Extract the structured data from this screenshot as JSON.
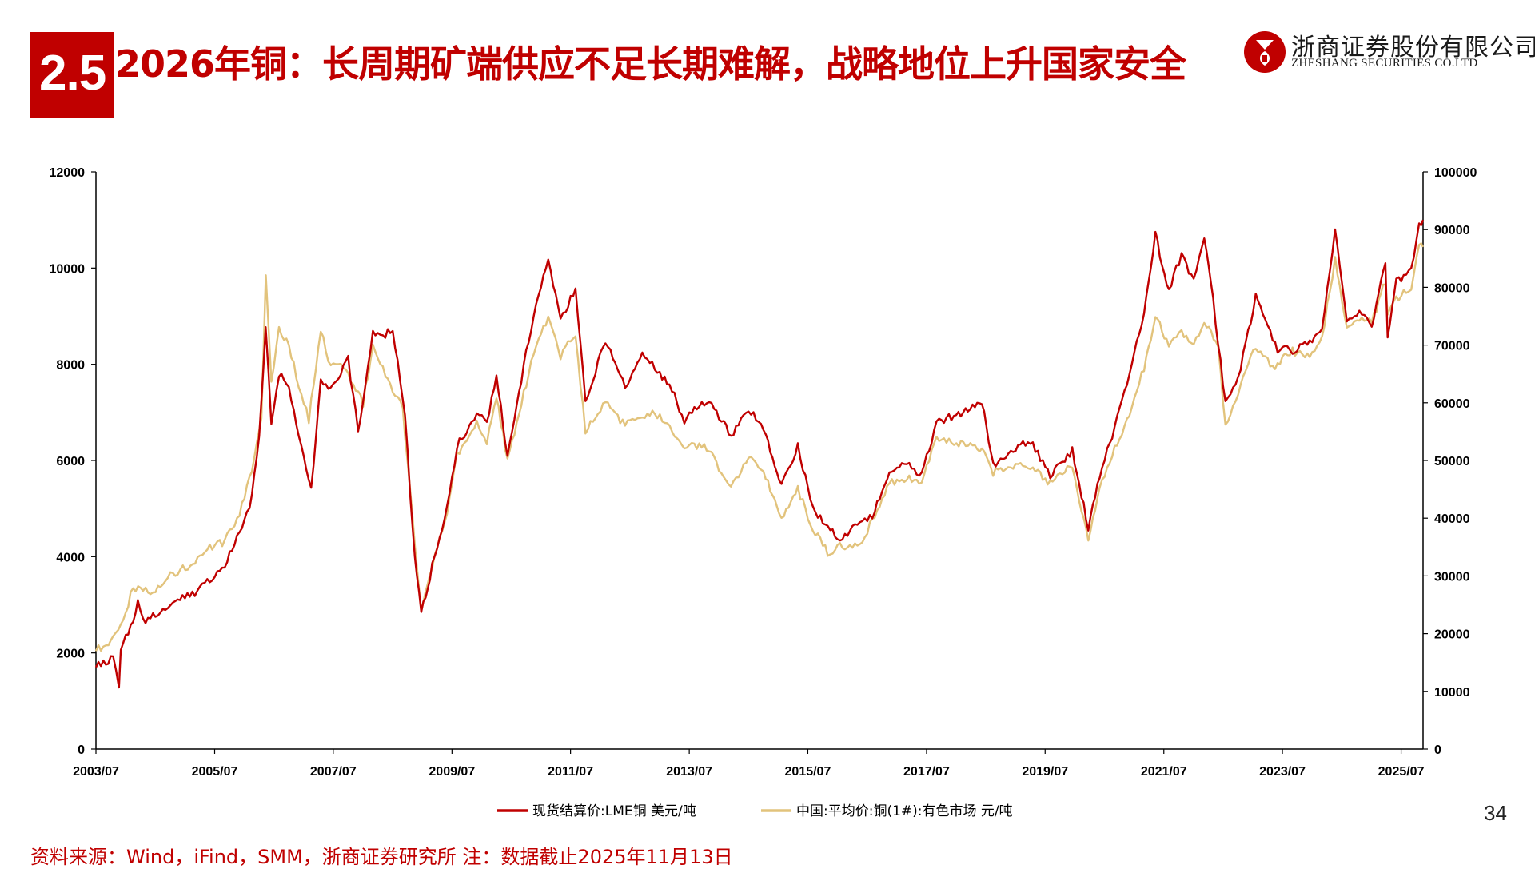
{
  "header": {
    "section_number": "2.5",
    "title": "2026年铜：长周期矿端供应不足长期难解，战略地位上升国家安全",
    "logo_cn": "浙商证券股份有限公司",
    "logo_en": "ZHESHANG SECURITIES CO.LTD"
  },
  "colors": {
    "accent": "#c00000",
    "lme_series": "#c00000",
    "china_series": "#e2c37c"
  },
  "chart_data": {
    "type": "line",
    "title": "",
    "xlabel": "",
    "ylabel": "",
    "x_tick_labels": [
      "2003/07",
      "2005/07",
      "2007/07",
      "2009/07",
      "2011/07",
      "2013/07",
      "2015/07",
      "2017/07",
      "2019/07",
      "2021/07",
      "2023/07",
      "2025/07"
    ],
    "x_range": [
      "2003/07",
      "2025/11"
    ],
    "y_left": {
      "min": 0,
      "max": 12000,
      "ticks": [
        "0",
        "2000",
        "4000",
        "6000",
        "8000",
        "10000",
        "12000"
      ]
    },
    "y_right": {
      "min": 0,
      "max": 100000,
      "ticks": [
        "0",
        "10000",
        "20000",
        "30000",
        "40000",
        "50000",
        "60000",
        "70000",
        "80000",
        "90000",
        "100000"
      ]
    },
    "grid": false,
    "legend_position": "bottom",
    "series": [
      {
        "name": "现货结算价:LME铜 美元/吨",
        "axis": "left",
        "points": [
          [
            "2003-07-01",
            1700
          ],
          [
            "2003-10-15",
            1900
          ],
          [
            "2003-11-20",
            1200
          ],
          [
            "2003-12-01",
            2100
          ],
          [
            "2004-02-15",
            2700
          ],
          [
            "2004-03-15",
            3050
          ],
          [
            "2004-05-01",
            2650
          ],
          [
            "2004-08-01",
            2850
          ],
          [
            "2004-12-15",
            3150
          ],
          [
            "2005-03-01",
            3250
          ],
          [
            "2005-06-01",
            3500
          ],
          [
            "2005-09-01",
            3800
          ],
          [
            "2005-12-01",
            4500
          ],
          [
            "2006-02-01",
            5000
          ],
          [
            "2006-04-01",
            6500
          ],
          [
            "2006-05-11",
            8700
          ],
          [
            "2006-06-15",
            6800
          ],
          [
            "2006-08-01",
            7800
          ],
          [
            "2006-10-01",
            7500
          ],
          [
            "2006-12-01",
            6500
          ],
          [
            "2007-02-15",
            5400
          ],
          [
            "2007-04-15",
            7700
          ],
          [
            "2007-06-01",
            7500
          ],
          [
            "2007-08-01",
            7700
          ],
          [
            "2007-10-01",
            8100
          ],
          [
            "2007-12-01",
            6600
          ],
          [
            "2008-03-01",
            8700
          ],
          [
            "2008-05-01",
            8600
          ],
          [
            "2008-07-01",
            8700
          ],
          [
            "2008-09-15",
            7000
          ],
          [
            "2008-11-01",
            4500
          ],
          [
            "2008-12-24",
            2800
          ],
          [
            "2009-03-01",
            3800
          ],
          [
            "2009-06-01",
            5000
          ],
          [
            "2009-08-01",
            6300
          ],
          [
            "2009-12-01",
            7000
          ],
          [
            "2010-02-01",
            6800
          ],
          [
            "2010-04-01",
            7800
          ],
          [
            "2010-06-08",
            6100
          ],
          [
            "2010-09-01",
            7700
          ],
          [
            "2010-12-01",
            9300
          ],
          [
            "2011-02-14",
            10100
          ],
          [
            "2011-05-01",
            8900
          ],
          [
            "2011-08-01",
            9600
          ],
          [
            "2011-10-01",
            7200
          ],
          [
            "2012-02-01",
            8500
          ],
          [
            "2012-06-01",
            7500
          ],
          [
            "2012-09-15",
            8300
          ],
          [
            "2012-12-01",
            7900
          ],
          [
            "2013-03-01",
            7600
          ],
          [
            "2013-06-01",
            6800
          ],
          [
            "2013-09-01",
            7200
          ],
          [
            "2013-12-01",
            7100
          ],
          [
            "2014-03-15",
            6500
          ],
          [
            "2014-07-01",
            7100
          ],
          [
            "2014-10-01",
            6700
          ],
          [
            "2015-01-20",
            5500
          ],
          [
            "2015-05-01",
            6300
          ],
          [
            "2015-08-01",
            5000
          ],
          [
            "2015-11-01",
            4600
          ],
          [
            "2016-01-15",
            4350
          ],
          [
            "2016-05-01",
            4700
          ],
          [
            "2016-08-01",
            4800
          ],
          [
            "2016-11-15",
            5800
          ],
          [
            "2017-03-01",
            5900
          ],
          [
            "2017-06-01",
            5700
          ],
          [
            "2017-09-01",
            6800
          ],
          [
            "2017-12-01",
            6900
          ],
          [
            "2018-06-07",
            7200
          ],
          [
            "2018-08-15",
            5900
          ],
          [
            "2018-12-01",
            6200
          ],
          [
            "2019-04-01",
            6400
          ],
          [
            "2019-08-01",
            5700
          ],
          [
            "2019-12-15",
            6200
          ],
          [
            "2020-03-23",
            4600
          ],
          [
            "2020-06-01",
            5700
          ],
          [
            "2020-09-01",
            6700
          ],
          [
            "2020-12-01",
            7800
          ],
          [
            "2021-03-01",
            9000
          ],
          [
            "2021-05-10",
            10700
          ],
          [
            "2021-08-01",
            9500
          ],
          [
            "2021-10-18",
            10300
          ],
          [
            "2022-01-01",
            9700
          ],
          [
            "2022-03-07",
            10700
          ],
          [
            "2022-05-01",
            9300
          ],
          [
            "2022-07-15",
            7200
          ],
          [
            "2022-10-01",
            7700
          ],
          [
            "2023-01-18",
            9400
          ],
          [
            "2023-04-01",
            8800
          ],
          [
            "2023-06-01",
            8300
          ],
          [
            "2023-09-01",
            8300
          ],
          [
            "2023-12-01",
            8400
          ],
          [
            "2024-03-01",
            8700
          ],
          [
            "2024-05-20",
            10800
          ],
          [
            "2024-08-01",
            8900
          ],
          [
            "2024-11-01",
            9100
          ],
          [
            "2025-01-01",
            8800
          ],
          [
            "2025-03-26",
            10100
          ],
          [
            "2025-04-09",
            8600
          ],
          [
            "2025-06-01",
            9700
          ],
          [
            "2025-09-01",
            10000
          ],
          [
            "2025-10-20",
            10900
          ],
          [
            "2025-11-13",
            11000
          ]
        ]
      },
      {
        "name": "中国:平均价:铜(1#):有色市场 元/吨",
        "axis": "right",
        "points": [
          [
            "2003-07-01",
            17000
          ],
          [
            "2003-10-01",
            19000
          ],
          [
            "2003-12-01",
            21000
          ],
          [
            "2004-02-15",
            28000
          ],
          [
            "2004-06-01",
            27000
          ],
          [
            "2004-10-01",
            30000
          ],
          [
            "2005-02-01",
            32000
          ],
          [
            "2005-06-01",
            35000
          ],
          [
            "2005-09-01",
            36000
          ],
          [
            "2005-12-01",
            41000
          ],
          [
            "2006-02-15",
            48000
          ],
          [
            "2006-04-15",
            58000
          ],
          [
            "2006-05-12",
            82000
          ],
          [
            "2006-06-15",
            63000
          ],
          [
            "2006-08-01",
            73000
          ],
          [
            "2006-10-01",
            70000
          ],
          [
            "2006-12-01",
            63000
          ],
          [
            "2007-02-01",
            57000
          ],
          [
            "2007-04-15",
            73000
          ],
          [
            "2007-06-01",
            67000
          ],
          [
            "2007-09-01",
            66000
          ],
          [
            "2008-01-01",
            60000
          ],
          [
            "2008-03-01",
            70000
          ],
          [
            "2008-06-01",
            64000
          ],
          [
            "2008-09-01",
            59000
          ],
          [
            "2008-11-15",
            35000
          ],
          [
            "2008-12-24",
            24000
          ],
          [
            "2009-03-01",
            32000
          ],
          [
            "2009-06-01",
            41000
          ],
          [
            "2009-08-01",
            51000
          ],
          [
            "2009-12-01",
            57000
          ],
          [
            "2010-02-01",
            53000
          ],
          [
            "2010-04-01",
            61000
          ],
          [
            "2010-06-08",
            50000
          ],
          [
            "2010-09-01",
            60000
          ],
          [
            "2010-12-01",
            70000
          ],
          [
            "2011-02-14",
            75000
          ],
          [
            "2011-05-01",
            68000
          ],
          [
            "2011-08-01",
            72000
          ],
          [
            "2011-10-01",
            55000
          ],
          [
            "2012-02-01",
            60000
          ],
          [
            "2012-06-01",
            56000
          ],
          [
            "2012-09-15",
            58000
          ],
          [
            "2013-01-01",
            58000
          ],
          [
            "2013-06-01",
            52000
          ],
          [
            "2013-10-01",
            53000
          ],
          [
            "2014-03-15",
            45000
          ],
          [
            "2014-07-01",
            51000
          ],
          [
            "2014-10-01",
            48000
          ],
          [
            "2015-01-20",
            40000
          ],
          [
            "2015-05-01",
            45000
          ],
          [
            "2015-08-01",
            38000
          ],
          [
            "2015-11-01",
            34000
          ],
          [
            "2016-01-15",
            35000
          ],
          [
            "2016-06-01",
            36000
          ],
          [
            "2016-11-15",
            46000
          ],
          [
            "2017-03-01",
            47000
          ],
          [
            "2017-06-01",
            46000
          ],
          [
            "2017-09-01",
            54000
          ],
          [
            "2018-01-01",
            53000
          ],
          [
            "2018-06-07",
            52000
          ],
          [
            "2018-08-15",
            48000
          ],
          [
            "2018-12-01",
            49000
          ],
          [
            "2019-04-01",
            49000
          ],
          [
            "2019-08-01",
            46000
          ],
          [
            "2019-12-15",
            49000
          ],
          [
            "2020-03-23",
            36000
          ],
          [
            "2020-06-01",
            45000
          ],
          [
            "2020-09-01",
            52000
          ],
          [
            "2020-12-01",
            58000
          ],
          [
            "2021-03-01",
            66000
          ],
          [
            "2021-05-10",
            75000
          ],
          [
            "2021-08-01",
            70000
          ],
          [
            "2021-10-18",
            72000
          ],
          [
            "2022-01-01",
            70000
          ],
          [
            "2022-03-07",
            74000
          ],
          [
            "2022-06-01",
            70000
          ],
          [
            "2022-07-15",
            56000
          ],
          [
            "2022-10-01",
            62000
          ],
          [
            "2023-01-18",
            70000
          ],
          [
            "2023-05-01",
            66000
          ],
          [
            "2023-09-01",
            69000
          ],
          [
            "2023-12-01",
            68000
          ],
          [
            "2024-03-01",
            71000
          ],
          [
            "2024-05-20",
            85000
          ],
          [
            "2024-08-01",
            73000
          ],
          [
            "2024-11-01",
            75000
          ],
          [
            "2025-01-01",
            74000
          ],
          [
            "2025-03-26",
            81000
          ],
          [
            "2025-04-09",
            75000
          ],
          [
            "2025-06-01",
            78000
          ],
          [
            "2025-09-01",
            80000
          ],
          [
            "2025-10-20",
            87000
          ],
          [
            "2025-11-13",
            87000
          ]
        ]
      }
    ]
  },
  "footer": {
    "page_number": "34",
    "source_note": "资料来源：Wind，iFind，SMM，浙商证券研究所 注：数据截止2025年11月13日"
  }
}
